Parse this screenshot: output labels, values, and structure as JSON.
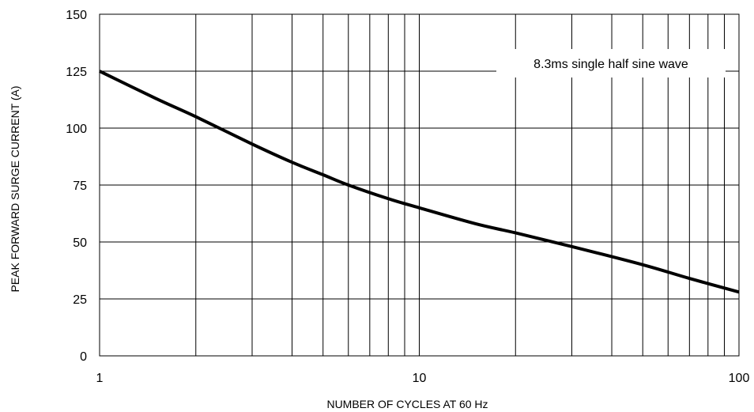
{
  "chart_data": {
    "type": "line",
    "title": "",
    "xlabel": "NUMBER OF CYCLES AT 60 Hz",
    "ylabel": "PEAK FORWARD SURGE CURRENT (A)",
    "x_scale": "log",
    "xlim": [
      1,
      100
    ],
    "ylim": [
      0,
      150
    ],
    "x_tick_labels": [
      "1",
      "10",
      "100"
    ],
    "x_ticks": [
      1,
      10,
      100
    ],
    "y_ticks": [
      0,
      25,
      50,
      75,
      100,
      125,
      150
    ],
    "y_tick_labels": [
      "0",
      "25",
      "50",
      "75",
      "100",
      "125",
      "150"
    ],
    "grid": true,
    "annotation": "8.3ms single half sine wave",
    "series": [
      {
        "x": [
          1,
          1.5,
          2,
          3,
          4,
          5,
          6,
          8,
          10,
          15,
          20,
          30,
          50,
          70,
          100
        ],
        "y": [
          125,
          113,
          105,
          93,
          85,
          79.5,
          75,
          69,
          65,
          58,
          54,
          48,
          40,
          34,
          28
        ]
      }
    ]
  }
}
